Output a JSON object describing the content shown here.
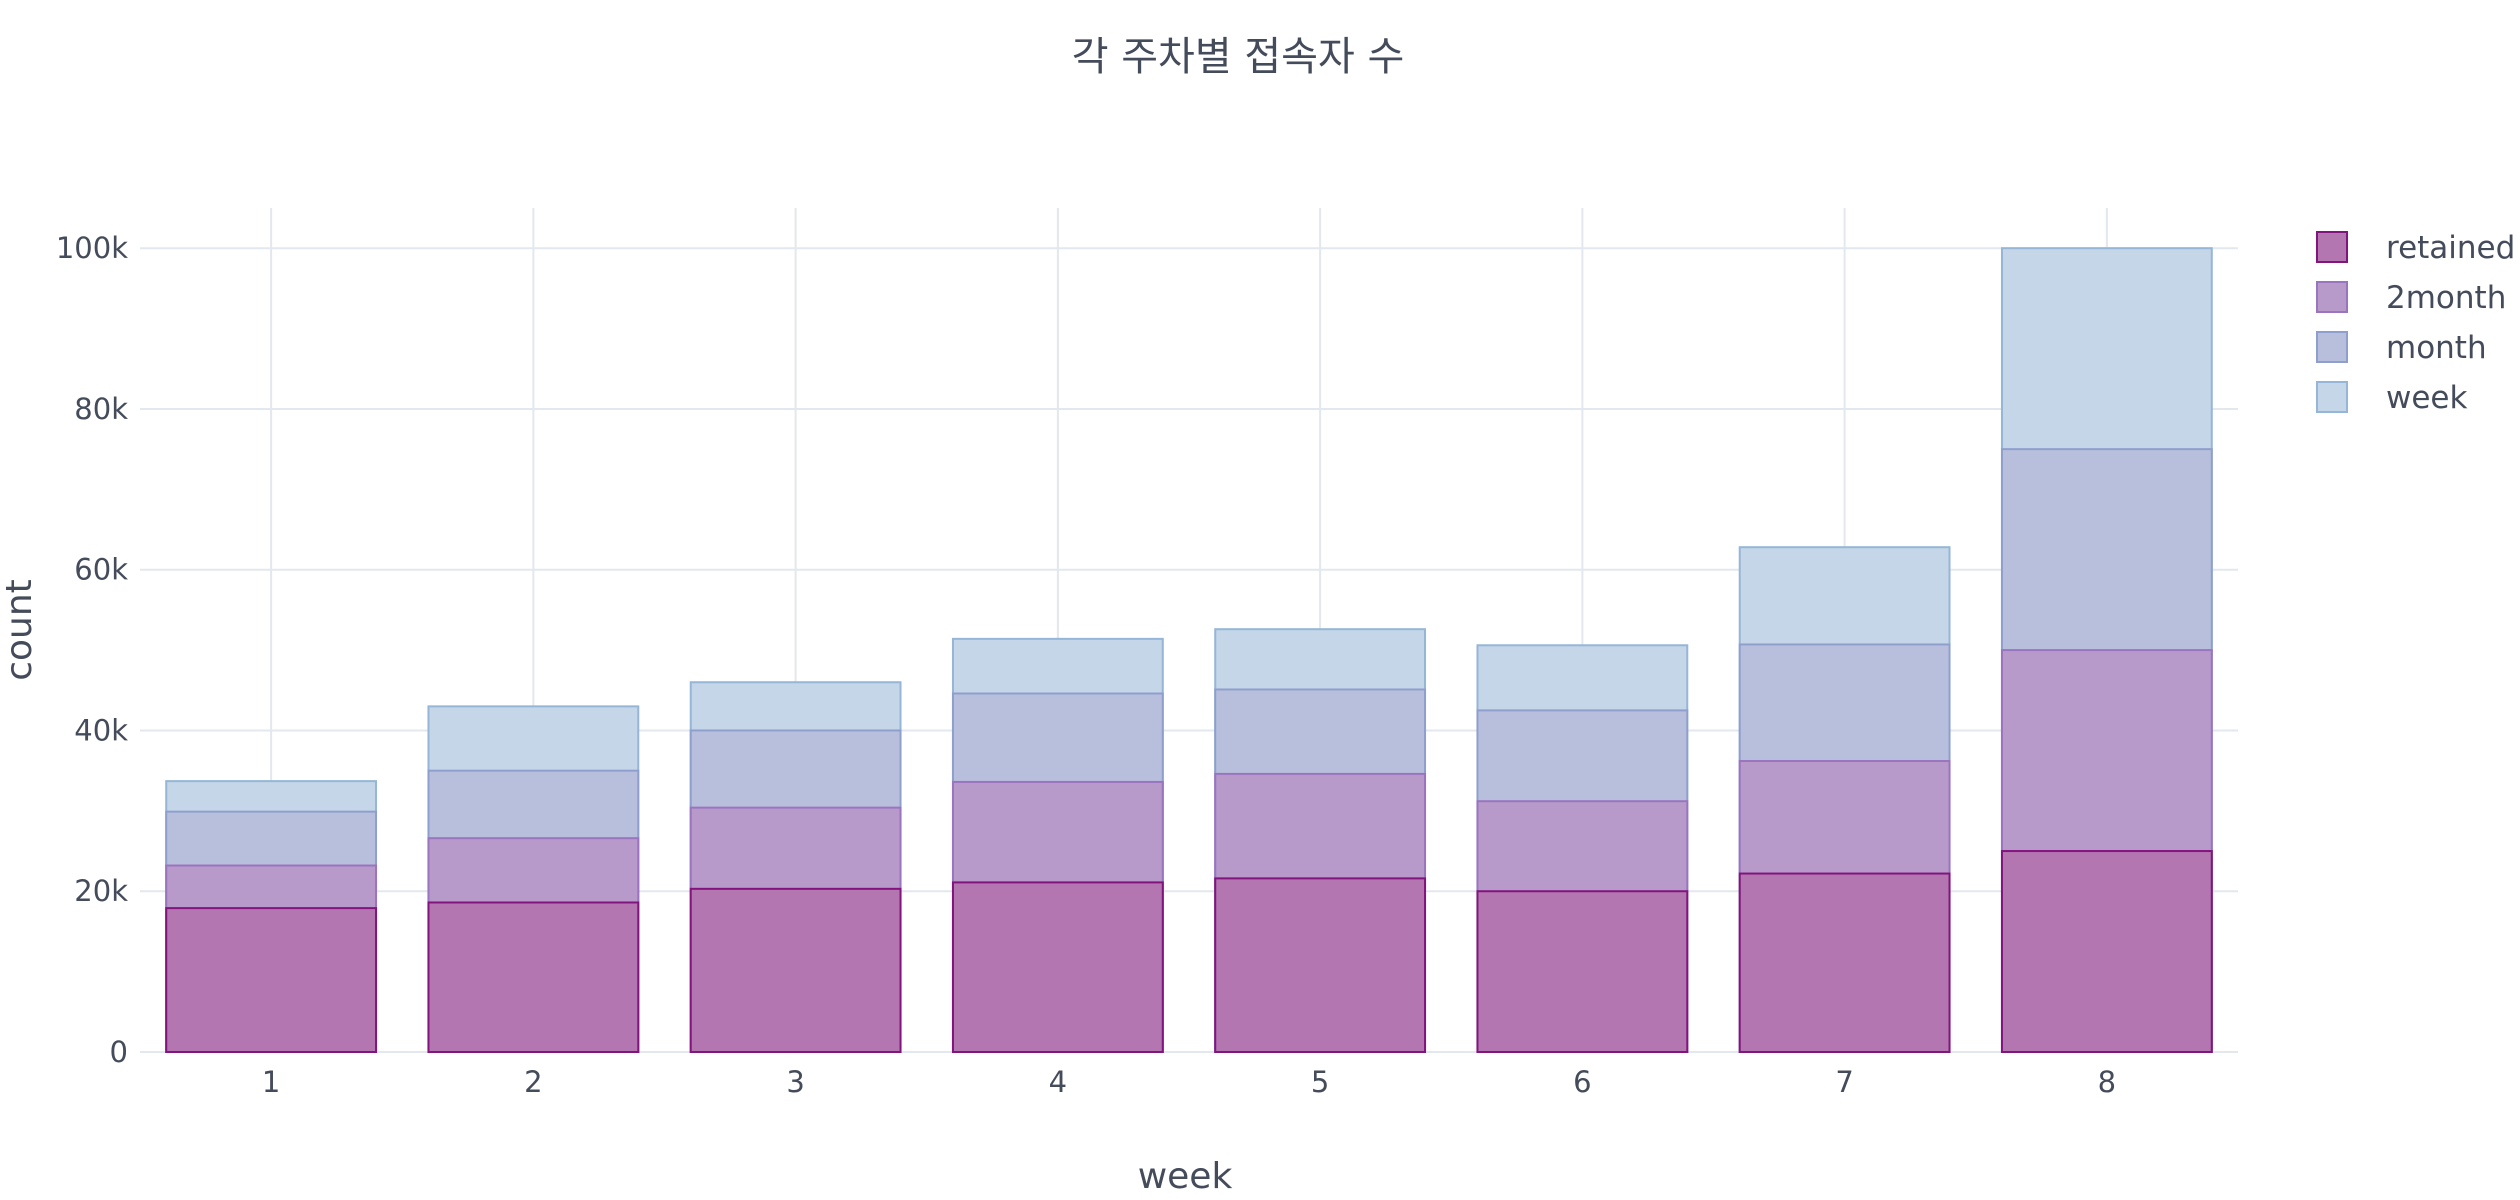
{
  "chart_data": {
    "type": "bar",
    "barmode": "overlay",
    "title": "각 주차별 접속자 수",
    "xlabel": "week",
    "ylabel": "count",
    "categories": [
      "1",
      "2",
      "3",
      "4",
      "5",
      "6",
      "7",
      "8"
    ],
    "ylim": [
      0,
      105000
    ],
    "yticks": [
      0,
      20000,
      40000,
      60000,
      80000,
      100000
    ],
    "ytick_labels": [
      "0",
      "20k",
      "40k",
      "60k",
      "80k",
      "100k"
    ],
    "grid": true,
    "legend_position": "top-right",
    "series": [
      {
        "name": "week",
        "fill": "#c4d6e8",
        "stroke": "#95b6d6",
        "values": [
          33700,
          43000,
          46000,
          51400,
          52600,
          50600,
          62800,
          100000
        ]
      },
      {
        "name": "month",
        "fill": "#b8bfdc",
        "stroke": "#8f9fcd",
        "values": [
          29900,
          35000,
          40000,
          44600,
          45100,
          42500,
          50700,
          75000
        ]
      },
      {
        "name": "2month",
        "fill": "#b79ac9",
        "stroke": "#9b74c0",
        "values": [
          23200,
          26600,
          30400,
          33600,
          34600,
          31200,
          36200,
          50000
        ]
      },
      {
        "name": "retained",
        "fill": "#b476b0",
        "stroke": "#82147e",
        "values": [
          17900,
          18600,
          20300,
          21100,
          21600,
          20000,
          22200,
          25000
        ]
      }
    ],
    "legend_order": [
      "retained",
      "2month",
      "month",
      "week"
    ]
  }
}
